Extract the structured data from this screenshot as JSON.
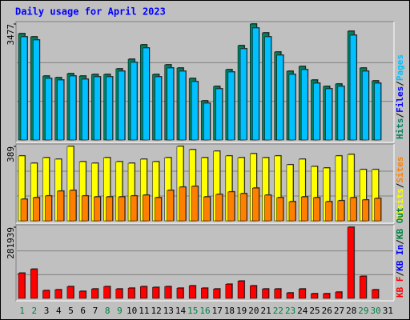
{
  "chart_data": [
    {
      "type": "bar",
      "title": "Daily usage for April 2023",
      "ylim": [
        0,
        3477
      ],
      "yticks": [
        3477
      ],
      "series": [
        {
          "name": "Hits",
          "color": "#008060",
          "values": [
            3189,
            3093,
            1918,
            1870,
            1990,
            1918,
            1966,
            1966,
            2134,
            2422,
            2854,
            1966,
            2254,
            2158,
            1846,
            1175,
            1607,
            2110,
            2830,
            3477,
            3213,
            2638,
            2062,
            2206,
            1798,
            1607,
            1679,
            3261,
            2158,
            1774,
            null
          ]
        },
        {
          "name": "Files",
          "color": "#0000ff",
          "values": [
            null,
            null,
            null,
            null,
            null,
            null,
            null,
            null,
            null,
            null,
            null,
            null,
            null,
            null,
            null,
            null,
            null,
            null,
            null,
            null,
            null,
            null,
            null,
            null,
            null,
            null,
            null,
            null,
            null,
            null,
            null
          ]
        },
        {
          "name": "Pages",
          "color": "#00c0ff",
          "values": [
            3093,
            2998,
            1846,
            1798,
            1918,
            1822,
            1894,
            1894,
            2062,
            2326,
            2758,
            1894,
            2158,
            2062,
            1750,
            1103,
            1535,
            2038,
            2734,
            3357,
            3093,
            2542,
            1966,
            2110,
            1702,
            1535,
            1607,
            3141,
            2062,
            1702,
            null
          ]
        }
      ]
    },
    {
      "type": "bar",
      "ylim": [
        0,
        389
      ],
      "yticks": [
        389
      ],
      "series": [
        {
          "name": "Visits",
          "color": "#ffff00",
          "values": [
            339,
            301,
            330,
            322,
            389,
            309,
            301,
            330,
            309,
            301,
            322,
            309,
            330,
            389,
            372,
            330,
            364,
            339,
            330,
            351,
            330,
            339,
            293,
            322,
            284,
            276,
            339,
            347,
            268,
            268,
            null
          ]
        },
        {
          "name": "Sites",
          "color": "#ff8000",
          "values": [
            113,
            121,
            130,
            155,
            159,
            130,
            125,
            125,
            125,
            130,
            134,
            121,
            159,
            176,
            180,
            125,
            138,
            151,
            142,
            171,
            134,
            121,
            100,
            125,
            121,
            100,
            105,
            121,
            109,
            117,
            null
          ]
        }
      ]
    },
    {
      "type": "bar",
      "ylim": [
        0,
        281939
      ],
      "yticks": [
        281939
      ],
      "categories": [
        "1",
        "2",
        "3",
        "4",
        "5",
        "6",
        "7",
        "8",
        "9",
        "10",
        "11",
        "12",
        "13",
        "14",
        "15",
        "16",
        "17",
        "18",
        "19",
        "20",
        "21",
        "22",
        "23",
        "24",
        "25",
        "26",
        "27",
        "28",
        "29",
        "30",
        "31"
      ],
      "series": [
        {
          "name": "KB F",
          "color": "#ff0000",
          "values": [
            100245,
            115909,
            31327,
            34459,
            46990,
            28194,
            37592,
            46990,
            37592,
            40724,
            46990,
            43857,
            46990,
            40724,
            50122,
            40724,
            37592,
            56388,
            68919,
            50122,
            37592,
            37592,
            21928,
            37592,
            18796,
            18796,
            25061,
            281939,
            87718,
            34459,
            null
          ]
        },
        {
          "name": "KB In",
          "color": "#0000ff",
          "values": [
            null,
            null,
            null,
            null,
            null,
            null,
            null,
            null,
            null,
            null,
            null,
            null,
            null,
            null,
            null,
            null,
            null,
            null,
            null,
            null,
            null,
            null,
            null,
            null,
            null,
            null,
            null,
            null,
            null,
            null,
            null
          ]
        },
        {
          "name": "KB Out",
          "color": "#008040",
          "values": [
            null,
            null,
            null,
            null,
            null,
            null,
            null,
            null,
            null,
            null,
            null,
            null,
            null,
            null,
            null,
            null,
            null,
            null,
            null,
            null,
            null,
            null,
            null,
            null,
            null,
            null,
            null,
            null,
            null,
            null,
            null
          ]
        }
      ]
    }
  ]
}
